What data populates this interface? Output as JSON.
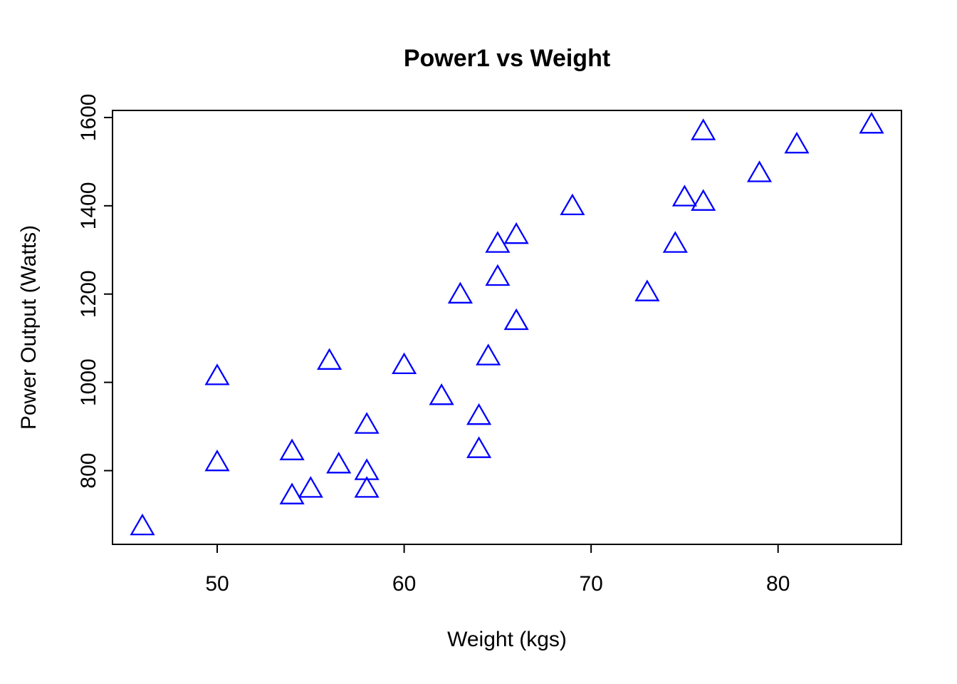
{
  "figure": {
    "background_color": "#ffffff",
    "axis_color": "#000000"
  },
  "chart_data": {
    "type": "scatter",
    "title": "Power1 vs Weight",
    "xlabel": "Weight (kgs)",
    "ylabel": "Power Output (Watts)",
    "marker": "open-triangle",
    "marker_color": "#0000ff",
    "grid": false,
    "legend": null,
    "x_ticks": [
      50,
      60,
      70,
      80
    ],
    "y_ticks": [
      800,
      1000,
      1200,
      1400,
      1600
    ],
    "xlim": [
      44.4,
      86.6
    ],
    "ylim": [
      633,
      1616
    ],
    "points": [
      [
        46,
        670
      ],
      [
        50,
        1010
      ],
      [
        50,
        815
      ],
      [
        54,
        840
      ],
      [
        54,
        740
      ],
      [
        55,
        755
      ],
      [
        56,
        1045
      ],
      [
        56.5,
        810
      ],
      [
        58,
        900
      ],
      [
        58,
        795
      ],
      [
        58,
        755
      ],
      [
        60,
        1035
      ],
      [
        62,
        965
      ],
      [
        63,
        1195
      ],
      [
        64,
        920
      ],
      [
        64,
        845
      ],
      [
        64.5,
        1055
      ],
      [
        65,
        1310
      ],
      [
        65,
        1235
      ],
      [
        66,
        1330
      ],
      [
        66,
        1135
      ],
      [
        69,
        1395
      ],
      [
        73,
        1200
      ],
      [
        74.5,
        1310
      ],
      [
        75,
        1415
      ],
      [
        76,
        1405
      ],
      [
        76,
        1565
      ],
      [
        79,
        1470
      ],
      [
        81,
        1535
      ],
      [
        85,
        1580
      ]
    ]
  }
}
